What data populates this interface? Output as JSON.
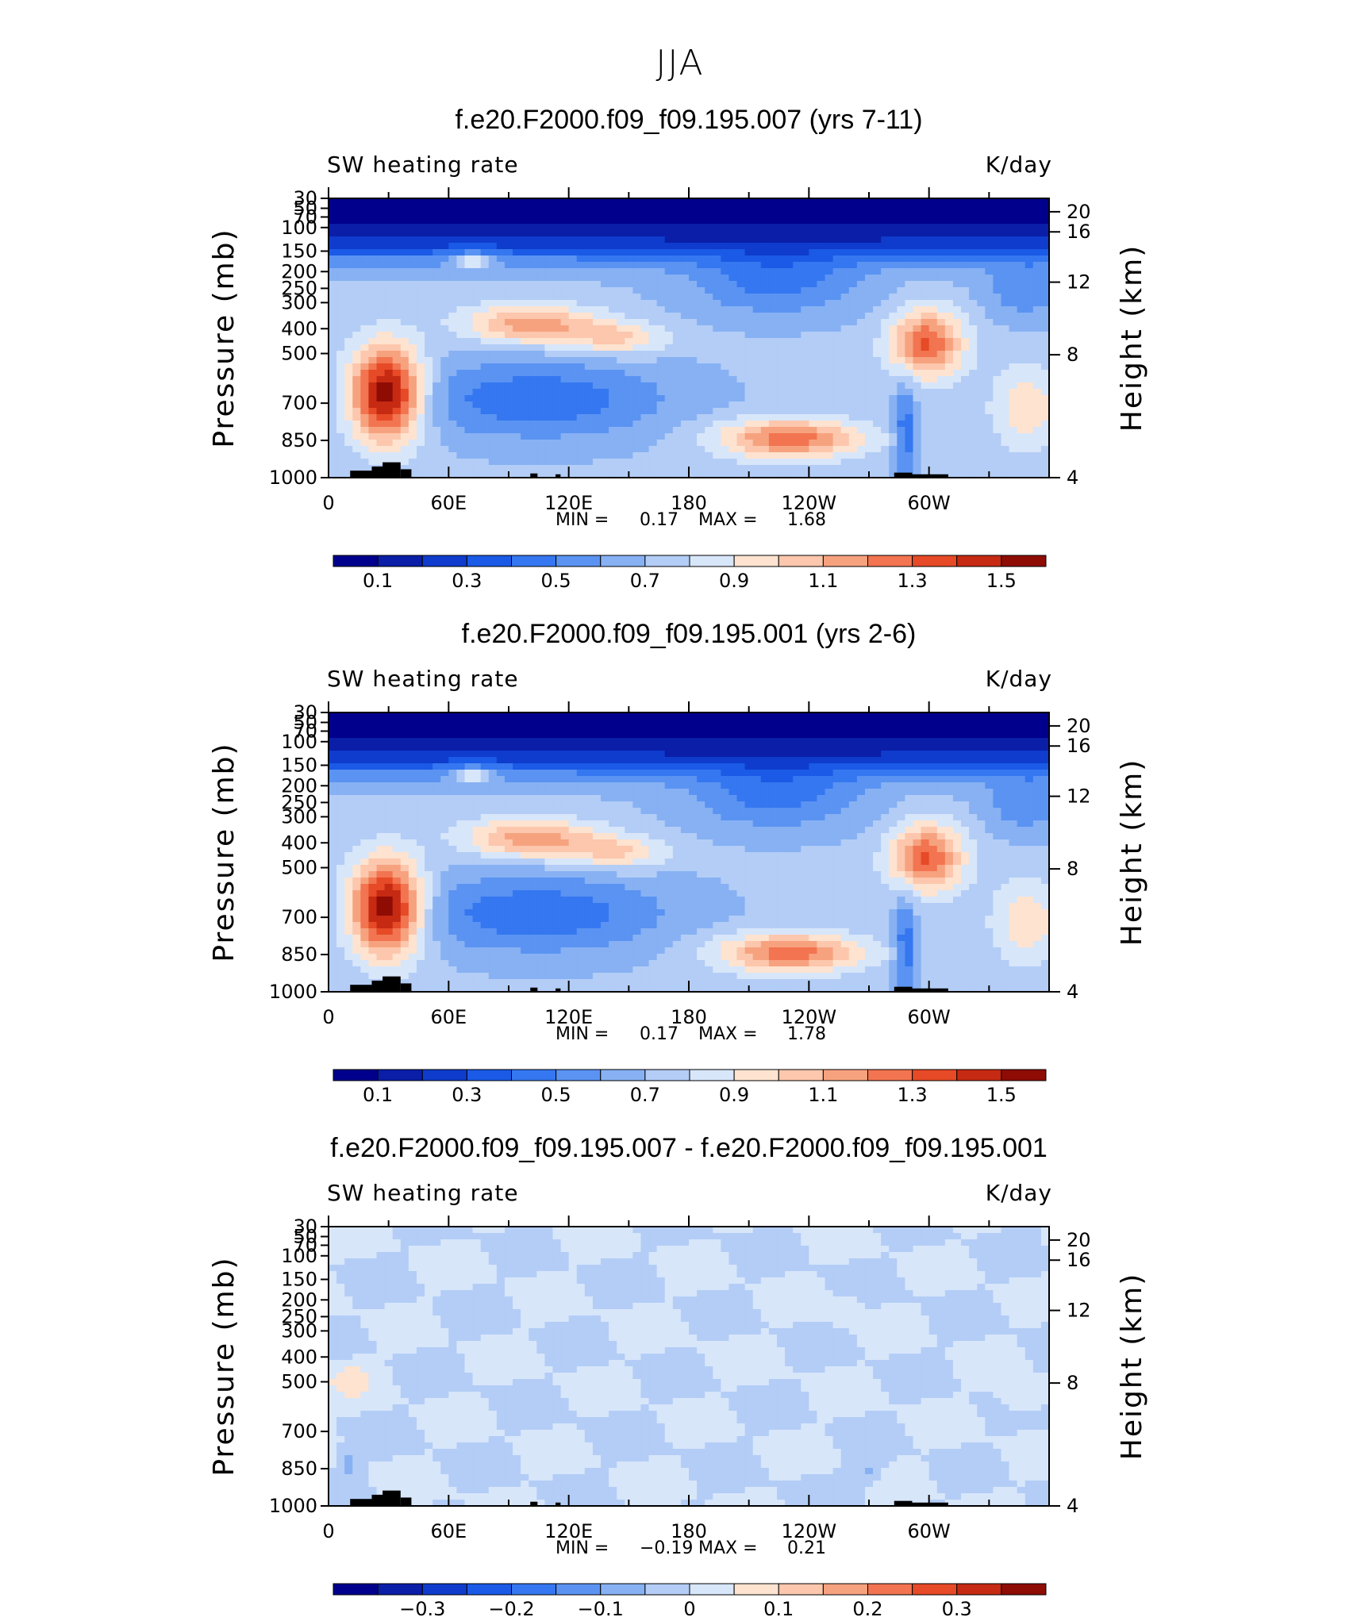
{
  "figure_title": "JJA",
  "chart_data": [
    {
      "type": "heatmap",
      "title": "f.e20.F2000.f09_f09.195.007 (yrs 7-11)",
      "left_label": "SW heating rate",
      "right_label": "K/day",
      "ylabel": "Pressure (mb)",
      "ylabel_right": "Height (km)",
      "x_ticks": [
        "0",
        "60E",
        "120E",
        "180",
        "120W",
        "60W"
      ],
      "y_ticks": [
        "30",
        "50",
        "70",
        "100",
        "150",
        "200",
        "250",
        "300",
        "400",
        "500",
        "700",
        "850",
        "1000"
      ],
      "y_right_ticks": [
        "20",
        "16",
        "12",
        "8",
        "4"
      ],
      "min_label": "MIN =",
      "min_value": "0.17",
      "max_label": "MAX =",
      "max_value": "1.68",
      "colorbar_labels": [
        "0.1",
        "0.3",
        "0.5",
        "0.7",
        "0.9",
        "1.1",
        "1.3",
        "1.5"
      ],
      "colorbar_levels": [
        0.1,
        0.2,
        0.3,
        0.4,
        0.5,
        0.6,
        0.7,
        0.8,
        0.9,
        1.0,
        1.1,
        1.2,
        1.3,
        1.4,
        1.5
      ],
      "field": "abs"
    },
    {
      "type": "heatmap",
      "title": "f.e20.F2000.f09_f09.195.001 (yrs 2-6)",
      "left_label": "SW heating rate",
      "right_label": "K/day",
      "ylabel": "Pressure (mb)",
      "ylabel_right": "Height (km)",
      "x_ticks": [
        "0",
        "60E",
        "120E",
        "180",
        "120W",
        "60W"
      ],
      "y_ticks": [
        "30",
        "50",
        "70",
        "100",
        "150",
        "200",
        "250",
        "300",
        "400",
        "500",
        "700",
        "850",
        "1000"
      ],
      "y_right_ticks": [
        "20",
        "16",
        "12",
        "8",
        "4"
      ],
      "min_label": "MIN =",
      "min_value": "0.17",
      "max_label": "MAX =",
      "max_value": "1.78",
      "colorbar_labels": [
        "0.1",
        "0.3",
        "0.5",
        "0.7",
        "0.9",
        "1.1",
        "1.3",
        "1.5"
      ],
      "colorbar_levels": [
        0.1,
        0.2,
        0.3,
        0.4,
        0.5,
        0.6,
        0.7,
        0.8,
        0.9,
        1.0,
        1.1,
        1.2,
        1.3,
        1.4,
        1.5
      ],
      "field": "abs"
    },
    {
      "type": "heatmap",
      "title": "f.e20.F2000.f09_f09.195.007 - f.e20.F2000.f09_f09.195.001",
      "left_label": "SW heating rate",
      "right_label": "K/day",
      "ylabel": "Pressure (mb)",
      "ylabel_right": "Height (km)",
      "x_ticks": [
        "0",
        "60E",
        "120E",
        "180",
        "120W",
        "60W"
      ],
      "y_ticks": [
        "30",
        "50",
        "70",
        "100",
        "150",
        "200",
        "250",
        "300",
        "400",
        "500",
        "700",
        "850",
        "1000"
      ],
      "y_right_ticks": [
        "20",
        "16",
        "12",
        "8",
        "4"
      ],
      "min_label": "MIN =",
      "min_value": "−0.19",
      "max_label": "MAX =",
      "max_value": "0.21",
      "colorbar_labels": [
        "−0.3",
        "−0.2",
        "−0.1",
        "0",
        "0.1",
        "0.2",
        "0.3"
      ],
      "colorbar_levels": [
        -0.35,
        -0.3,
        -0.25,
        -0.2,
        -0.15,
        -0.1,
        -0.05,
        0,
        0.05,
        0.1,
        0.15,
        0.2,
        0.25,
        0.3,
        0.35
      ],
      "field": "diff"
    }
  ],
  "palette": [
    "#00008c",
    "#0a1ea8",
    "#0f3ccc",
    "#1a5ae6",
    "#3577f0",
    "#5a93f2",
    "#87b1f3",
    "#b3cdf6",
    "#d8e6fa",
    "#fde3d0",
    "#fcc7ad",
    "#f7a27f",
    "#f27450",
    "#e64a26",
    "#c62a12",
    "#8e0c04"
  ]
}
